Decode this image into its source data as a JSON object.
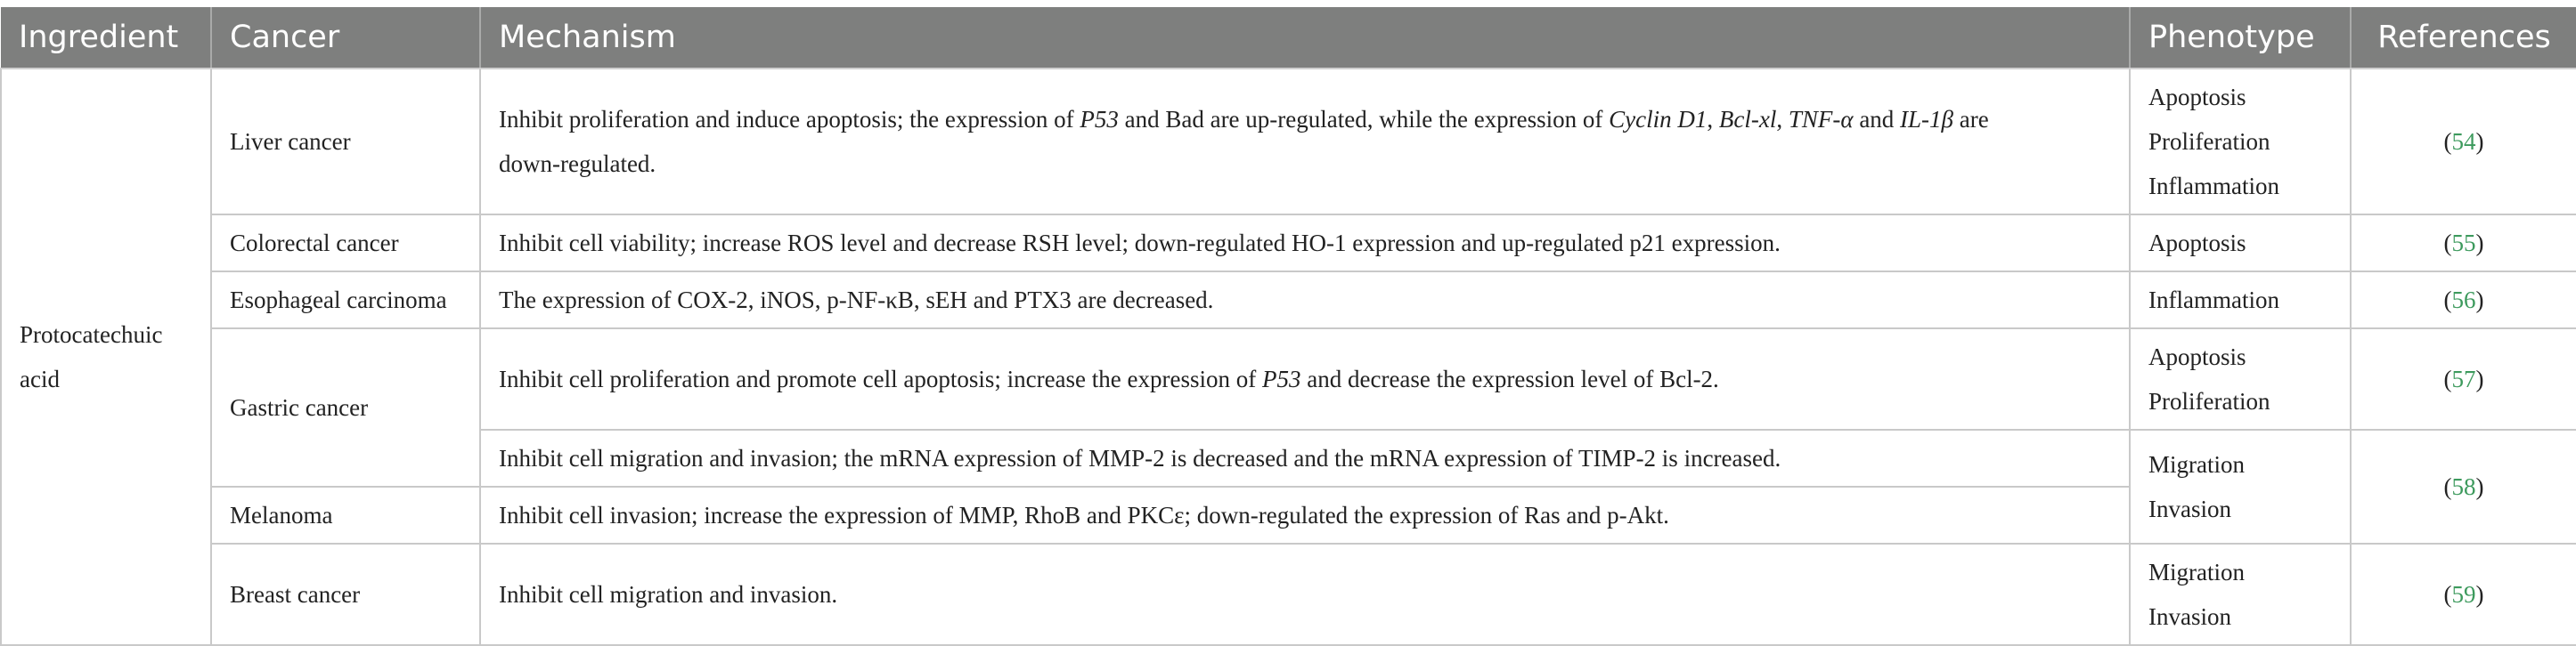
{
  "headers": {
    "ingredient": "Ingredient",
    "cancer": "Cancer",
    "mechanism": "Mechanism",
    "phenotype": "Phenotype",
    "references": "References"
  },
  "ingredient": [
    "Protocatechuic",
    "acid"
  ],
  "rows": {
    "liver": {
      "cancer": "Liver cancer",
      "mechanism": {
        "p1": "Inhibit proliferation and induce apoptosis; the expression of ",
        "i1": "P53",
        "p2": " and Bad are up-regulated, while the expression of ",
        "i2": "Cyclin D1",
        "p3": ", ",
        "i3": "Bcl-xl",
        "p4": ", ",
        "i4": "TNF-α",
        "p5": " and ",
        "i5": "IL-1β",
        "p6": " are",
        "line2": "down-regulated."
      },
      "phenotype": [
        "Apoptosis",
        "Proliferation",
        "Inflammation"
      ],
      "ref": "54"
    },
    "colorectal": {
      "cancer": "Colorectal cancer",
      "mechanism": "Inhibit cell viability; increase ROS level and decrease RSH level; down-regulated HO-1 expression and up-regulated p21 expression.",
      "phenotype": [
        "Apoptosis"
      ],
      "ref": "55"
    },
    "esophageal": {
      "cancer": "Esophageal carcinoma",
      "mechanism": "The expression of COX-2, iNOS, p-NF-κB, sEH and PTX3 are decreased.",
      "phenotype": [
        "Inflammation"
      ],
      "ref": "56"
    },
    "gastric": {
      "cancer": "Gastric cancer",
      "mechanism_a": {
        "p1": "Inhibit cell proliferation and promote cell apoptosis; increase the expression of ",
        "i1": "P53",
        "p2": " and decrease the expression level of Bcl-2."
      },
      "phenotype_a": [
        "Apoptosis",
        "Proliferation"
      ],
      "ref_a": "57",
      "mechanism_b": "Inhibit cell migration and invasion; the mRNA expression of MMP-2 is decreased and the mRNA expression of TIMP-2 is increased."
    },
    "melanoma": {
      "cancer": "Melanoma",
      "mechanism": "Inhibit cell invasion; increase the expression of MMP, RhoB and PKCε; down-regulated the expression of Ras and p-Akt."
    },
    "migration_group": {
      "phenotype": [
        "Migration",
        "Invasion"
      ],
      "ref": "58"
    },
    "breast": {
      "cancer": "Breast cancer",
      "mechanism": "Inhibit cell migration and invasion.",
      "phenotype": [
        "Migration",
        "Invasion"
      ],
      "ref": "59"
    }
  },
  "colors": {
    "header_bg": "#7e7f7e",
    "header_text": "#ffffff",
    "border": "#c9c9c9",
    "reference_link": "#3d9a5d"
  }
}
